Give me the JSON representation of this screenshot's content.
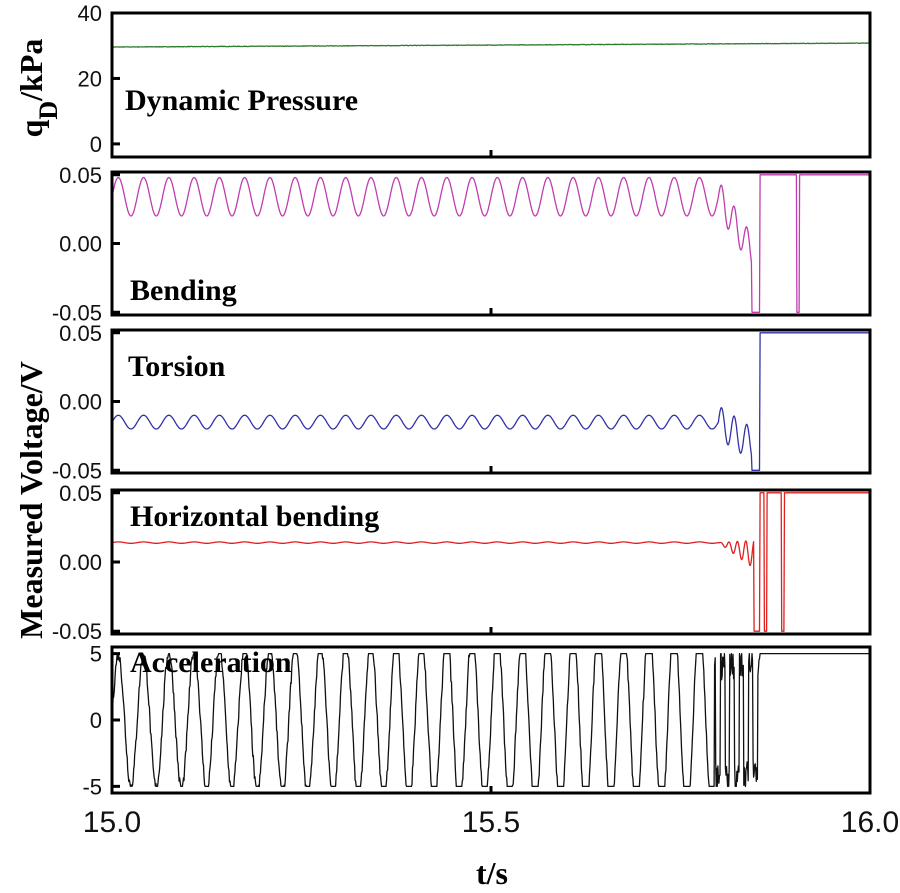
{
  "chart_data": {
    "type": "line",
    "x_axis": {
      "label": "t/s",
      "range": [
        15.0,
        16.0
      ],
      "ticks": [
        15.0,
        15.5,
        16.0
      ],
      "tick_labels": [
        "15.0",
        "15.5",
        "16.0"
      ]
    },
    "shared_ylabel": "Measured Voltage/V",
    "panels": [
      {
        "id": "dynamic",
        "name": "Dynamic Pressure",
        "ylabel": "qD/kPa",
        "ylabel_main": "q",
        "ylabel_sub": "D",
        "ylabel_rest": "/kPa",
        "ylim": [
          -4,
          40
        ],
        "ticks": [
          0,
          20,
          40
        ],
        "tick_labels": [
          "0",
          "20",
          "40"
        ],
        "color": "#2e7d2e",
        "series": {
          "base": 29.6,
          "drift": 1.2
        }
      },
      {
        "id": "bending",
        "name": "Bending",
        "ylim": [
          -0.052,
          0.052
        ],
        "ticks": [
          -0.05,
          0.0,
          0.05
        ],
        "tick_labels": [
          "-0.05",
          "0.00",
          "0.05"
        ],
        "color": "#c03cb0",
        "series": {
          "offset": 0.034,
          "amplitude": 0.014,
          "cycles": 30,
          "instability_start": 15.8,
          "saturation_time": 15.855,
          "saturation_value": 0.05
        }
      },
      {
        "id": "torsion",
        "name": "Torsion",
        "ylim": [
          -0.052,
          0.052
        ],
        "ticks": [
          -0.05,
          0.0,
          0.05
        ],
        "tick_labels": [
          "-0.05",
          "0.00",
          "0.05"
        ],
        "color": "#3232a8",
        "series": {
          "offset": -0.015,
          "amplitude": 0.005,
          "cycles": 30,
          "instability_start": 15.8,
          "saturation_time": 15.855,
          "saturation_value": 0.05
        }
      },
      {
        "id": "horizontal",
        "name": "Horizontal bending",
        "ylim": [
          -0.052,
          0.052
        ],
        "ticks": [
          -0.05,
          0.0,
          0.05
        ],
        "tick_labels": [
          "-0.05",
          "0.00",
          "0.05"
        ],
        "color": "#e02020",
        "series": {
          "offset": 0.014,
          "amplitude": 0.0005,
          "instability_start": 15.8,
          "saturation_time": 15.855,
          "saturation_value": 0.05
        }
      },
      {
        "id": "acceleration",
        "name": "Acceleration",
        "ylim": [
          -5.5,
          5.5
        ],
        "ticks": [
          -5,
          0,
          5
        ],
        "tick_labels": [
          "-5",
          "0",
          "5"
        ],
        "color": "#111111",
        "series": {
          "amplitude": 5.0,
          "cycles": 30,
          "clip": 5.0,
          "instability_start": 15.795,
          "saturation_time": 15.855,
          "saturation_value": 5.0
        }
      }
    ]
  }
}
